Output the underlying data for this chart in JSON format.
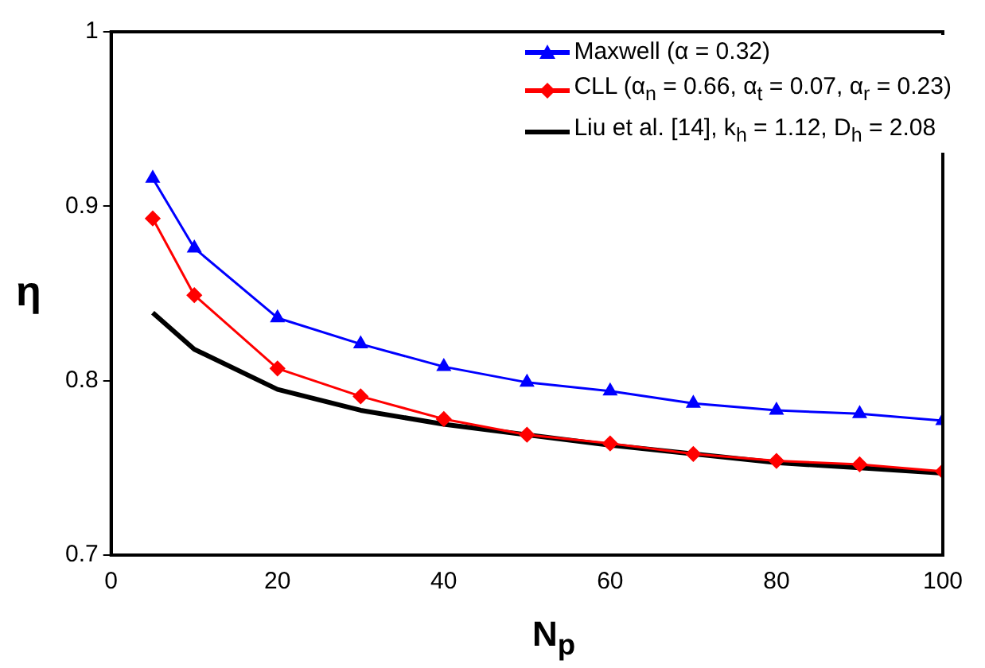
{
  "chart_data": {
    "type": "line",
    "xlabel": "N$_{p}$",
    "ylabel": "η",
    "x": [
      5,
      10,
      20,
      30,
      40,
      50,
      60,
      70,
      80,
      90,
      100
    ],
    "xlim": [
      0,
      100
    ],
    "xticks": [
      0,
      20,
      40,
      60,
      80,
      100
    ],
    "ylim": [
      0.7,
      1
    ],
    "yticks": [
      0.7,
      0.8,
      0.9,
      1
    ],
    "grid": false,
    "legend": "top right",
    "series": [
      {
        "name": "Maxwell (α = 0.32)",
        "color": "#0000ff",
        "marker": "triangle",
        "values": [
          0.916,
          0.876,
          0.836,
          0.821,
          0.808,
          0.799,
          0.794,
          0.787,
          0.783,
          0.781,
          0.777
        ]
      },
      {
        "name": "CLL (α$_{n}$ = 0.66, α$_{t}$ = 0.07, α$_{r}$ = 0.23)",
        "color": "#ff0000",
        "marker": "diamond",
        "values": [
          0.893,
          0.849,
          0.807,
          0.791,
          0.778,
          0.769,
          0.764,
          0.758,
          0.754,
          0.752,
          0.748
        ]
      },
      {
        "name": "Liu et al. [14], k$_{h}$ = 1.12, D$_{h}$ = 2.08",
        "color": "#000000",
        "marker": "none",
        "values": [
          0.839,
          0.818,
          0.795,
          0.783,
          0.775,
          0.769,
          0.763,
          0.758,
          0.753,
          0.75,
          0.747
        ]
      }
    ]
  }
}
